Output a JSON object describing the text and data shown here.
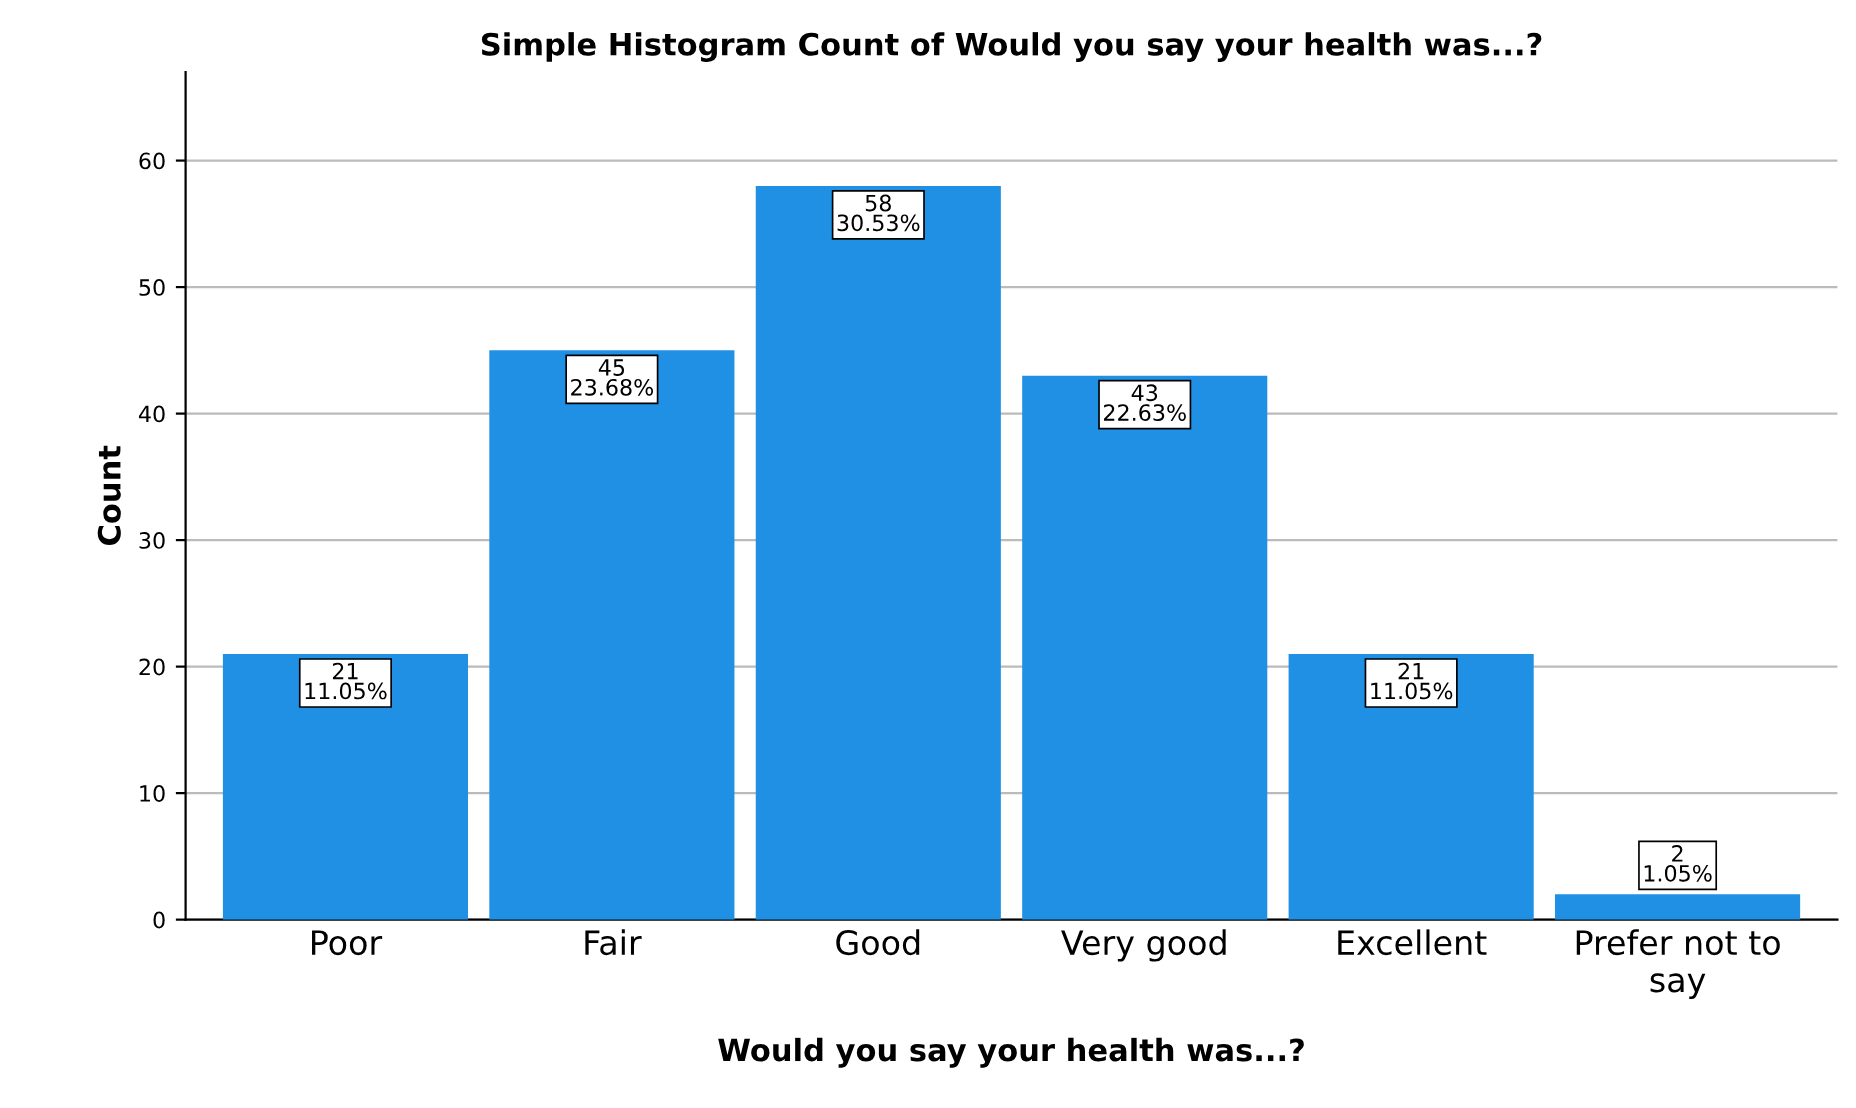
{
  "chart_data": {
    "type": "bar",
    "title": "Simple Histogram Count of Would you say your health was...?",
    "xlabel": "Would you say your health was...?",
    "ylabel": "Count",
    "categories": [
      "Poor",
      "Fair",
      "Good",
      "Very good",
      "Excellent",
      "Prefer not to\nsay"
    ],
    "values": [
      21,
      45,
      58,
      43,
      21,
      2
    ],
    "value_labels": [
      "21\n11.05%",
      "45\n23.68%",
      "58\n30.53%",
      "43\n22.63%",
      "21\n11.05%",
      "2\n1.05%"
    ],
    "color": "#1f90e4",
    "ylim": [
      0,
      67
    ],
    "yticks": [
      0,
      10,
      20,
      30,
      40,
      50,
      60
    ],
    "grid": "y"
  }
}
